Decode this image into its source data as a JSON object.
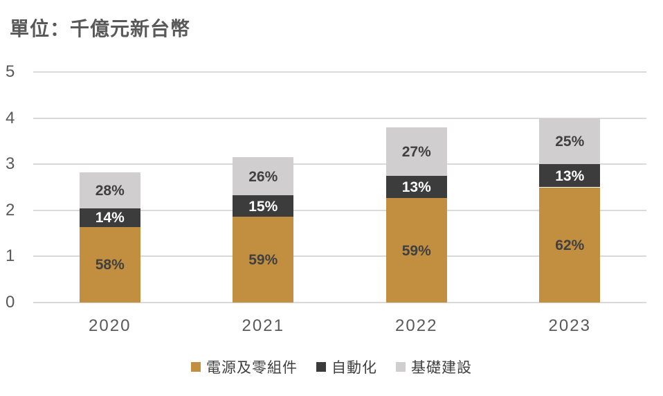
{
  "title": "單位：千億元新台幣",
  "colors": {
    "background": "#FFFFFF",
    "gridline": "#D9D9D9",
    "axis_text": "#595959",
    "title_text": "#595959",
    "legend_text": "#404040"
  },
  "chart_data": {
    "type": "bar",
    "stacked": true,
    "title": "單位：千億元新台幣",
    "categories": [
      "2020",
      "2021",
      "2022",
      "2023"
    ],
    "series": [
      {
        "name": "電源及零組件",
        "color": "#C28E40",
        "label_color": "#404040",
        "values": [
          1.64,
          1.86,
          2.26,
          2.5
        ],
        "labels": [
          "58%",
          "59%",
          "59%",
          "62%"
        ]
      },
      {
        "name": "自動化",
        "color": "#3C3C3C",
        "label_color": "#FFFFFF",
        "values": [
          0.4,
          0.46,
          0.49,
          0.5
        ],
        "labels": [
          "14%",
          "15%",
          "13%",
          "13%"
        ]
      },
      {
        "name": "基礎建設",
        "color": "#D0CECE",
        "label_color": "#404040",
        "values": [
          0.79,
          0.83,
          1.05,
          1.0
        ],
        "labels": [
          "28%",
          "26%",
          "27%",
          "25%"
        ]
      }
    ],
    "totals": [
      2.83,
      3.15,
      3.8,
      4.0
    ],
    "ylim": [
      0,
      5
    ],
    "yticks": [
      0,
      1,
      2,
      3,
      4,
      5
    ],
    "grid": true,
    "legend_position": "bottom",
    "xlabel": "",
    "ylabel": ""
  }
}
